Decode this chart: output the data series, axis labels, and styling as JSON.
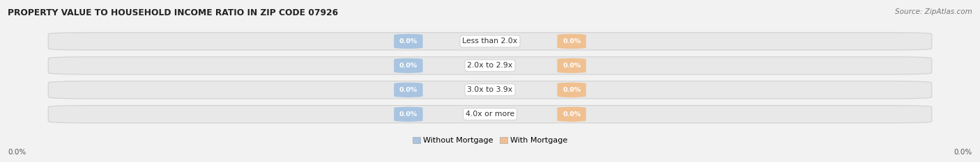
{
  "title": "PROPERTY VALUE TO HOUSEHOLD INCOME RATIO IN ZIP CODE 07926",
  "source": "Source: ZipAtlas.com",
  "categories": [
    "Less than 2.0x",
    "2.0x to 2.9x",
    "3.0x to 3.9x",
    "4.0x or more"
  ],
  "without_mortgage": [
    0.0,
    0.0,
    0.0,
    0.0
  ],
  "with_mortgage": [
    0.0,
    0.0,
    0.0,
    0.0
  ],
  "without_mortgage_color": "#a8c4e0",
  "with_mortgage_color": "#f0c090",
  "bar_bg_color": "#e8e8e8",
  "bar_bg_edge_color": "#d0d0d0",
  "label_font_color": "#333333",
  "title_color": "#222222",
  "x_left_label": "0.0%",
  "x_right_label": "0.0%",
  "legend_without": "Without Mortgage",
  "legend_with": "With Mortgage",
  "fig_bg_color": "#f2f2f2",
  "white": "#ffffff"
}
